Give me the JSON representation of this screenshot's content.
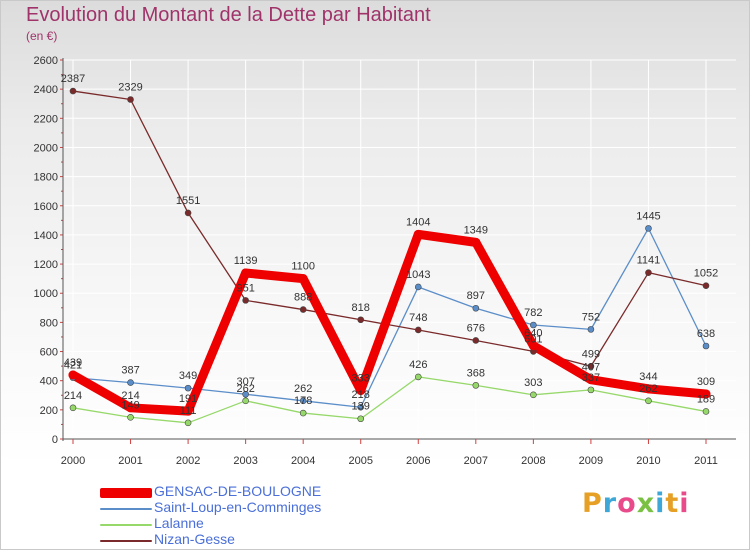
{
  "title": "Evolution du Montant de la Dette par Habitant",
  "subtitle": "(en €)",
  "logo": {
    "text": "Proxiti",
    "colors": [
      "#e6a026",
      "#3da8d8",
      "#e84a8a",
      "#7ac143",
      "#3da8d8",
      "#e6a026",
      "#e84a8a"
    ]
  },
  "chart_data": {
    "type": "line",
    "title": "Evolution du Montant de la Dette par Habitant",
    "subtitle": "(en €)",
    "xlabel": "",
    "ylabel": "",
    "categories": [
      "2000",
      "2001",
      "2002",
      "2003",
      "2004",
      "2005",
      "2006",
      "2007",
      "2008",
      "2009",
      "2010",
      "2011"
    ],
    "ylim": [
      0,
      2600
    ],
    "yticks": [
      "0",
      "200",
      "400",
      "600",
      "800",
      "1000",
      "1200",
      "1400",
      "1600",
      "1800",
      "2000",
      "2200",
      "2400",
      "2600"
    ],
    "grid": true,
    "legend_position": "bottom-left",
    "series": [
      {
        "name": "GENSAC-DE-BOULOGNE",
        "color": "#ee0000",
        "style": "thick",
        "values": [
          439,
          214,
          191,
          1139,
          1100,
          333,
          1404,
          1349,
          640,
          407,
          344,
          309
        ]
      },
      {
        "name": "Saint-Loup-en-Comminges",
        "color": "#5b8ec9",
        "style": "thin",
        "values": [
          421,
          387,
          349,
          307,
          262,
          218,
          1043,
          897,
          782,
          752,
          1445,
          638
        ]
      },
      {
        "name": "Lalanne",
        "color": "#96d86a",
        "style": "thin",
        "values": [
          214,
          149,
          111,
          262,
          178,
          139,
          426,
          368,
          303,
          337,
          262,
          189
        ]
      },
      {
        "name": "Nizan-Gesse",
        "color": "#7a2a2a",
        "style": "thin",
        "values": [
          2387,
          2329,
          1551,
          951,
          888,
          818,
          748,
          676,
          601,
          499,
          1141,
          1052
        ]
      }
    ],
    "data_labels": [
      [
        "439",
        "214",
        "191",
        "1139",
        "1100",
        "333",
        "1404",
        "1349",
        "640",
        "407",
        "344",
        "309"
      ],
      [
        "421",
        "387",
        "349",
        "307",
        "262",
        "218",
        "1043",
        "897",
        "782",
        "752",
        "1445",
        "638"
      ],
      [
        "214",
        "149",
        "111",
        "262",
        "178",
        "139",
        "426",
        "368",
        "303",
        "337",
        "262",
        "189"
      ],
      [
        "2387",
        "2329",
        "1551",
        "951",
        "888",
        "818",
        "748",
        "676",
        "601",
        "499",
        "1141",
        "1052"
      ]
    ]
  }
}
